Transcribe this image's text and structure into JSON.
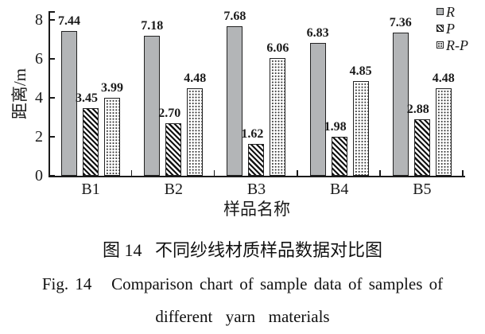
{
  "colors": {
    "bar_gray": "#b3b5b7",
    "ink": "#1a1a1a"
  },
  "chart_data": {
    "type": "bar",
    "categories": [
      "B1",
      "B2",
      "B3",
      "B4",
      "B5"
    ],
    "series": [
      {
        "name": "R",
        "style": "solid-gray",
        "values": [
          7.44,
          7.18,
          7.68,
          6.83,
          7.36
        ]
      },
      {
        "name": "P",
        "style": "diagonal-hatch",
        "values": [
          3.45,
          2.7,
          1.62,
          1.98,
          2.88
        ]
      },
      {
        "name": "R-P",
        "style": "dotted",
        "values": [
          3.99,
          4.48,
          6.06,
          4.85,
          4.48
        ]
      }
    ],
    "ylabel": "距离/m",
    "xlabel": "样品名称",
    "yticks": [
      0,
      2,
      4,
      6,
      8
    ],
    "ylim": [
      0,
      8
    ],
    "grid": false,
    "legend_position": "top-right",
    "value_labels": true
  },
  "caption": {
    "zh": "图 14   不同纱线材质样品数据对比图",
    "en_line1": "Fig. 14   Comparison chart of sample data of samples of",
    "en_line2": "different  yarn  materials"
  }
}
